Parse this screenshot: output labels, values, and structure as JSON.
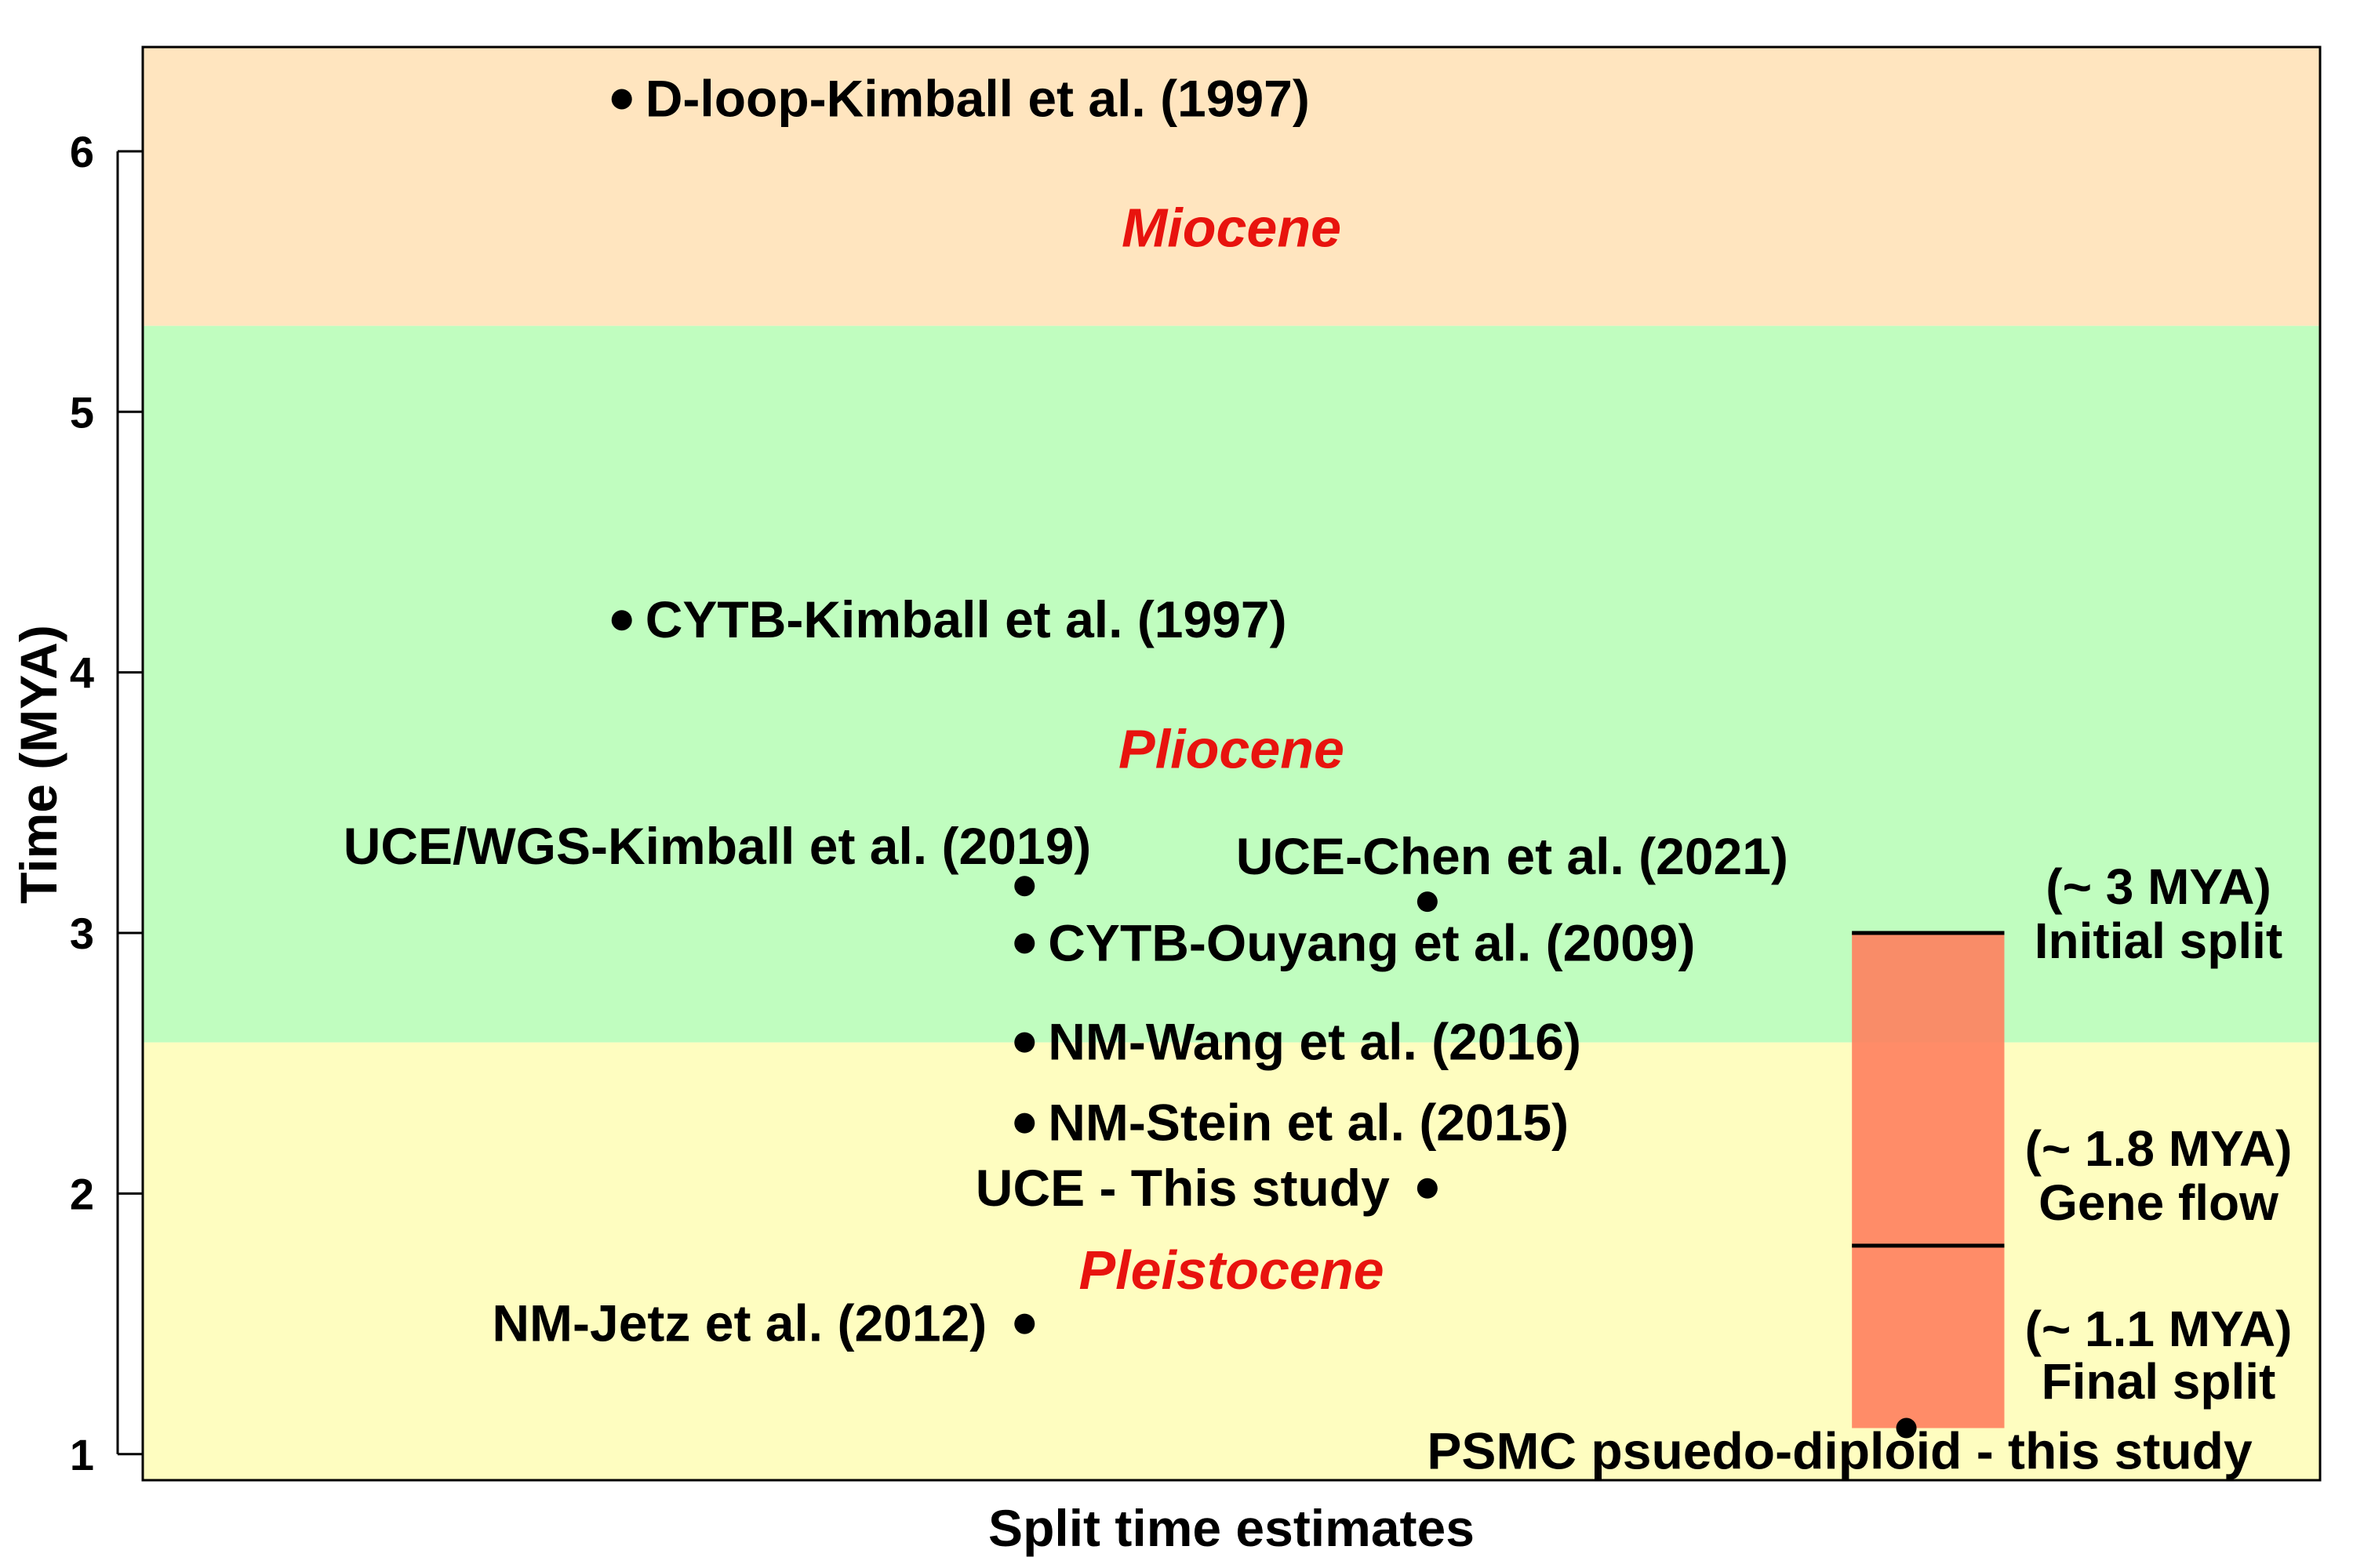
{
  "chart_data": {
    "type": "scatter",
    "xlabel": "Split time estimates",
    "ylabel": "Time (MYA)",
    "ylim": [
      0.9,
      6.4
    ],
    "xlim": [
      0,
      100
    ],
    "yticks": [
      1,
      2,
      3,
      4,
      5,
      6
    ],
    "grid": false,
    "epochs": [
      {
        "name": "Miocene",
        "from": 5.33,
        "to": 6.4,
        "color": "#FFE5BF",
        "label_y": 5.7
      },
      {
        "name": "Pliocene",
        "from": 2.58,
        "to": 5.33,
        "color": "#C0FDBF",
        "label_y": 3.7
      },
      {
        "name": "Pleistocene",
        "from": 0.9,
        "to": 2.58,
        "color": "#FEFDC0",
        "label_y": 1.7
      }
    ],
    "epoch_label_color": "#E8130E",
    "points": [
      {
        "label": "D-loop-Kimball et al. (1997)",
        "x": 22,
        "y": 6.2,
        "label_side": "right"
      },
      {
        "label": "CYTB-Kimball et al. (1997)",
        "x": 22,
        "y": 4.2,
        "label_side": "right"
      },
      {
        "label": "UCE/WGS-Kimball et al. (2019)",
        "x": 40.5,
        "y": 3.18,
        "label_side": "above-left"
      },
      {
        "label": "UCE-Chen et al. (2021)",
        "x": 59,
        "y": 3.12,
        "label_side": "above"
      },
      {
        "label": "CYTB-Ouyang et al. (2009)",
        "x": 40.5,
        "y": 2.96,
        "label_side": "right"
      },
      {
        "label": "NM-Wang et al. (2016)",
        "x": 40.5,
        "y": 2.58,
        "label_side": "right"
      },
      {
        "label": "NM-Stein et al. (2015)",
        "x": 40.5,
        "y": 2.27,
        "label_side": "right"
      },
      {
        "label": "UCE - This study",
        "x": 59,
        "y": 2.02,
        "label_side": "left"
      },
      {
        "label": "NM-Jetz et al. (2012)",
        "x": 40.5,
        "y": 1.5,
        "label_side": "left"
      },
      {
        "label": "PSMC psuedo-diploid - this study",
        "x": 81,
        "y": 1.1,
        "label_side": "below"
      }
    ],
    "psmc_bar": {
      "x_from": 78.5,
      "x_to": 85.5,
      "y_from": 1.1,
      "y_to": 3.0,
      "color": "#FF7F5E",
      "lines": [
        3.0,
        1.8
      ],
      "annotations": [
        {
          "lines": [
            "(~ 3 MYA)",
            "Initial split"
          ]
        },
        {
          "lines": [
            "(~ 1.8 MYA)",
            "Gene flow"
          ]
        },
        {
          "lines": [
            "(~ 1.1 MYA)",
            "Final split"
          ]
        }
      ]
    }
  }
}
